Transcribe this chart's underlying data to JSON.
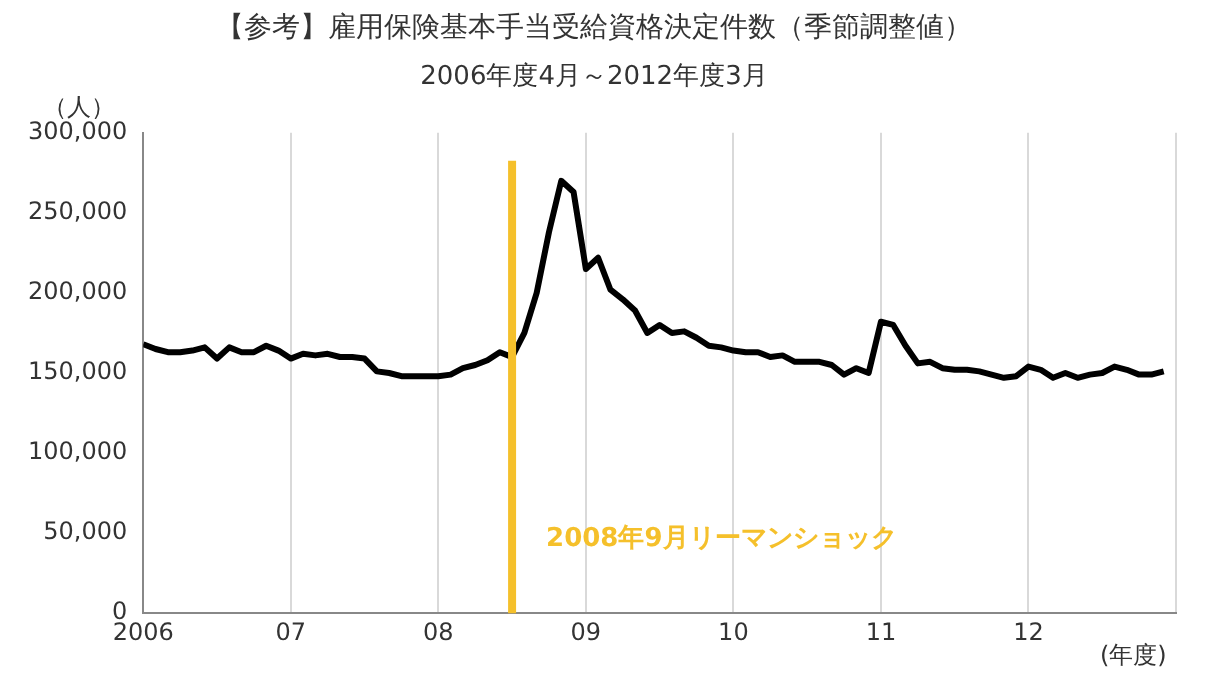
{
  "chart_data": {
    "type": "line",
    "title": "【参考】雇用保険基本手当受給資格決定件数（季節調整値）",
    "subtitle": "2006年度4月～2012年度3月",
    "ylabel": "（人）",
    "xlabel": "(年度)",
    "x": [
      2006,
      2006.0833,
      2006.1667,
      2006.25,
      2006.3333,
      2006.4167,
      2006.5,
      2006.5833,
      2006.6667,
      2006.75,
      2006.8333,
      2006.9167,
      2007,
      2007.0833,
      2007.1667,
      2007.25,
      2007.3333,
      2007.4167,
      2007.5,
      2007.5833,
      2007.6667,
      2007.75,
      2007.8333,
      2007.9167,
      2008,
      2008.0833,
      2008.1667,
      2008.25,
      2008.3333,
      2008.4167,
      2008.5,
      2008.5833,
      2008.6667,
      2008.75,
      2008.8333,
      2008.9167,
      2009,
      2009.0833,
      2009.1667,
      2009.25,
      2009.3333,
      2009.4167,
      2009.5,
      2009.5833,
      2009.6667,
      2009.75,
      2009.8333,
      2009.9167,
      2010,
      2010.0833,
      2010.1667,
      2010.25,
      2010.3333,
      2010.4167,
      2010.5,
      2010.5833,
      2010.6667,
      2010.75,
      2010.8333,
      2010.9167,
      2011,
      2011.0833,
      2011.1667,
      2011.25,
      2011.3333,
      2011.4167,
      2011.5,
      2011.5833,
      2011.6667,
      2011.75,
      2011.8333,
      2011.9167,
      2012,
      2012.0833,
      2012.1667,
      2012.25,
      2012.3333,
      2012.4167,
      2012.5,
      2012.5833,
      2012.6667,
      2012.75,
      2012.8333,
      2012.9167
    ],
    "series": [
      {
        "color": "#000000",
        "values": [
          168000,
          165000,
          163000,
          163000,
          164000,
          166000,
          159000,
          166000,
          163000,
          163000,
          167000,
          164000,
          159000,
          162000,
          161000,
          162000,
          160000,
          160000,
          159000,
          151000,
          150000,
          148000,
          148000,
          148000,
          148000,
          149000,
          153000,
          155000,
          158000,
          163000,
          160000,
          175000,
          200000,
          238000,
          270000,
          263000,
          215000,
          222000,
          202000,
          196000,
          189000,
          175000,
          180000,
          175000,
          176000,
          172000,
          167000,
          166000,
          164000,
          163000,
          163000,
          160000,
          161000,
          157000,
          157000,
          157000,
          155000,
          149000,
          153000,
          150000,
          182000,
          180000,
          167000,
          156000,
          157000,
          153000,
          152000,
          152000,
          151000,
          149000,
          147000,
          148000,
          154000,
          152000,
          147000,
          150000,
          147000,
          149000,
          150000,
          154000,
          152000,
          149000,
          149000,
          151000
        ]
      }
    ],
    "xlim": [
      2006,
      2013
    ],
    "xticks": [
      {
        "value": 2006,
        "label": "2006"
      },
      {
        "value": 2007,
        "label": "07"
      },
      {
        "value": 2008,
        "label": "08"
      },
      {
        "value": 2009,
        "label": "09"
      },
      {
        "value": 2010,
        "label": "10"
      },
      {
        "value": 2011,
        "label": "11"
      },
      {
        "value": 2012,
        "label": "12"
      },
      {
        "value": 2013,
        "label": null
      }
    ],
    "ylim": [
      0,
      300000
    ],
    "yticks": [
      {
        "value": 0,
        "label": "0"
      },
      {
        "value": 50000,
        "label": "50,000"
      },
      {
        "value": 100000,
        "label": "100,000"
      },
      {
        "value": 150000,
        "label": "150,000"
      },
      {
        "value": 200000,
        "label": "200,000"
      },
      {
        "value": 250000,
        "label": "250,000"
      },
      {
        "value": 300000,
        "label": "300,000"
      }
    ],
    "grid": "x",
    "legend": false,
    "marker": "none",
    "line_style": "solid",
    "ref_lines": [
      {
        "axis": "x",
        "value": 2008.5,
        "label": "2008年9月リーマンショック",
        "color": "#f5c02b"
      }
    ]
  }
}
